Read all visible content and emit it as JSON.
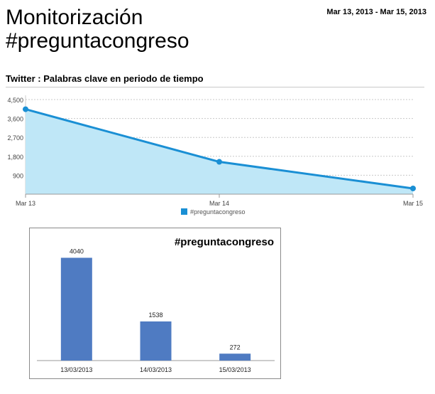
{
  "header": {
    "title_line1": "Monitorización",
    "title_line2": "#preguntacongreso",
    "date_range": "Mar 13, 2013 - Mar 15, 2013",
    "section_title": "Twitter : Palabras clave en periodo de tiempo"
  },
  "chart_data": [
    {
      "type": "area",
      "title": "",
      "x": [
        "Mar 13",
        "Mar 14",
        "Mar 15"
      ],
      "y_ticks": [
        "900",
        "1,800",
        "2,700",
        "3,600",
        "4,500"
      ],
      "ylim": [
        0,
        4500
      ],
      "grid": true,
      "legend": "bottom",
      "series": [
        {
          "name": "#preguntacongreso",
          "values": [
            4040,
            1538,
            272
          ],
          "color": "#1a8fd4",
          "fill": "#bfe7f7"
        }
      ]
    },
    {
      "type": "bar",
      "title": "#preguntacongreso",
      "categories": [
        "13/03/2013",
        "14/03/2013",
        "15/03/2013"
      ],
      "values": [
        4040,
        1538,
        272
      ],
      "value_labels": [
        "4040",
        "1538",
        "272"
      ],
      "ylim": [
        0,
        4500
      ],
      "grid": false,
      "bar_color": "#4f7bc2"
    }
  ]
}
